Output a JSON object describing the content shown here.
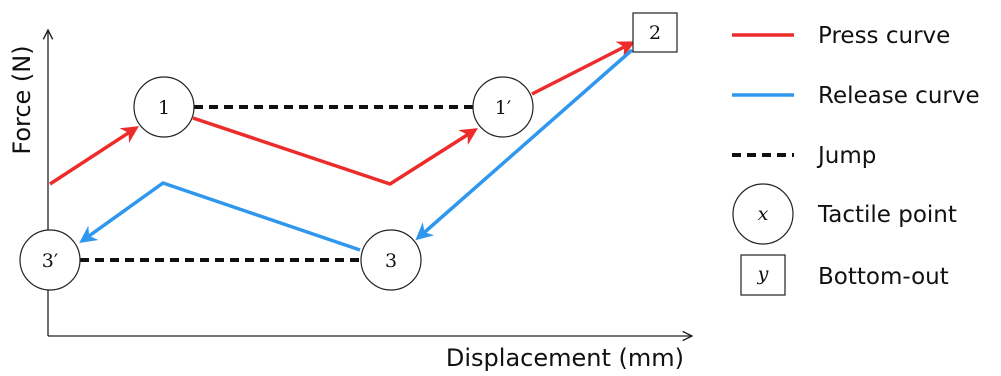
{
  "axes": {
    "x_label": "Displacement (mm)",
    "y_label": "Force (N)"
  },
  "nodes": {
    "n1": "1",
    "n1p": "1′",
    "n2": "2",
    "n3": "3",
    "n3p": "3′"
  },
  "legend": {
    "press": "Press curve",
    "release": "Release curve",
    "jump": "Jump",
    "tactile": "Tactile point",
    "tactile_symbol": "x",
    "bottom": "Bottom-out",
    "bottom_symbol": "y"
  },
  "colors": {
    "press": "#ee2b2b",
    "release": "#2f97ee",
    "jump": "#111111"
  }
}
